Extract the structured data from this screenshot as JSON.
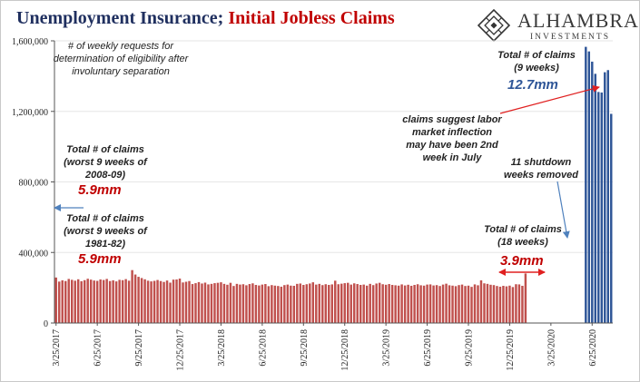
{
  "header": {
    "title_part1": "Unemployment Insurance;",
    "title_part2": "Initial Jobless Claims"
  },
  "logo": {
    "name": "ALHAMBRA",
    "subtitle": "INVESTMENTS"
  },
  "annotations": {
    "definition": "# of weekly requests for determination of eligibility after involuntary separation",
    "worst_2008_label": "Total # of claims (worst 9 weeks of 2008-09)",
    "worst_2008_value": "5.9mm",
    "worst_1981_label": "Total # of claims (worst 9 weeks of 1981-82)",
    "worst_1981_value": "5.9mm",
    "total_18w_label": "Total # of claims (18 weeks)",
    "total_18w_value": "3.9mm",
    "total_9w_label": "Total # of claims (9 weeks)",
    "total_9w_value": "12.7mm",
    "inflection": "claims suggest labor market inflection may have been 2nd week in July",
    "shutdown": "11 shutdown weeks removed"
  },
  "colors": {
    "pre_bars": "#c0504d",
    "post_bars": "#2e5597",
    "red_text": "#c00000",
    "blue_text": "#2e5597",
    "arrow_blue": "#4f81bd"
  },
  "chart_data": {
    "type": "bar",
    "title": "Unemployment Insurance; Initial Jobless Claims",
    "xlabel": "",
    "ylabel": "",
    "ylim": [
      0,
      1600000
    ],
    "yticks": [
      0,
      400000,
      800000,
      1200000,
      1600000
    ],
    "ytick_labels": [
      "0",
      "400,000",
      "800,000",
      "1,200,000",
      "1,600,000"
    ],
    "xtick_labels": [
      "3/25/2017",
      "6/25/2017",
      "9/25/2017",
      "12/25/2017",
      "3/25/2018",
      "6/25/2018",
      "9/25/2018",
      "12/25/2018",
      "3/25/2019",
      "6/25/2019",
      "9/25/2019",
      "12/25/2019",
      "3/25/2020",
      "6/25/2020"
    ],
    "series": [
      {
        "period": "3/25/2017 - 3/14/2020",
        "color": "#c0504d",
        "values": [
          258000,
          235000,
          242000,
          238000,
          250000,
          245000,
          240000,
          248000,
          237000,
          243000,
          251000,
          246000,
          241000,
          239000,
          247000,
          244000,
          250000,
          238000,
          242000,
          236000,
          245000,
          243000,
          249000,
          240000,
          300000,
          275000,
          262000,
          255000,
          248000,
          240000,
          236000,
          239000,
          244000,
          238000,
          233000,
          241000,
          229000,
          246000,
          247000,
          252000,
          230000,
          234000,
          238000,
          221000,
          226000,
          232000,
          224000,
          229000,
          219000,
          222000,
          226000,
          228000,
          231000,
          222000,
          217000,
          228000,
          210000,
          222000,
          218000,
          220000,
          214000,
          221000,
          225000,
          216000,
          213000,
          218000,
          221000,
          209000,
          215000,
          212000,
          210000,
          206000,
          215000,
          218000,
          212000,
          211000,
          222000,
          224000,
          216000,
          220000,
          224000,
          231000,
          218000,
          222000,
          215000,
          220000,
          216000,
          219000,
          240000,
          220000,
          223000,
          226000,
          228000,
          218000,
          225000,
          221000,
          216000,
          218000,
          212000,
          222000,
          215000,
          224000,
          228000,
          220000,
          217000,
          221000,
          216000,
          214000,
          212000,
          219000,
          213000,
          217000,
          211000,
          216000,
          220000,
          214000,
          212000,
          218000,
          219000,
          213000,
          215000,
          210000,
          218000,
          223000,
          214000,
          212000,
          209000,
          215000,
          218000,
          210000,
          212000,
          205000,
          219000,
          214000,
          242000,
          225000,
          222000,
          217000,
          215000,
          210000,
          206000,
          211000,
          208000,
          212000,
          204000,
          220000,
          219000,
          211000,
          281000
        ]
      },
      {
        "period": "6/6/2020 - 8/1/2020",
        "color": "#2e5597",
        "values": [
          1566000,
          1540000,
          1482000,
          1413000,
          1310000,
          1307000,
          1422000,
          1434000,
          1186000
        ]
      }
    ]
  }
}
